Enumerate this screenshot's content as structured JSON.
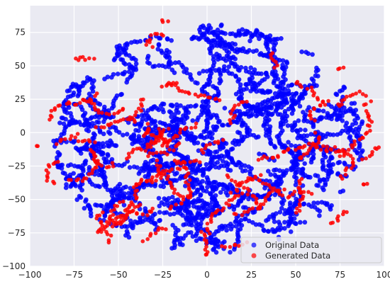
{
  "chart_data": {
    "type": "scatter",
    "xlim": [
      -100,
      100
    ],
    "ylim": [
      -100,
      95
    ],
    "x_ticks": [
      "−100",
      "−75",
      "−50",
      "−25",
      "0",
      "25",
      "50",
      "75",
      "100"
    ],
    "x_tick_values": [
      -100,
      -75,
      -50,
      -25,
      0,
      25,
      50,
      75,
      100
    ],
    "y_ticks": [
      "−100",
      "−75",
      "−50",
      "−25",
      "0",
      "25",
      "50",
      "75"
    ],
    "y_tick_values": [
      -100,
      -75,
      -50,
      -25,
      0,
      25,
      50,
      75
    ],
    "grid": true,
    "legend_position": "bottom-right",
    "colors": {
      "plot_background": "#eaeaf2",
      "grid": "#ffffff",
      "original": "#0000ff",
      "generated": "#ff0000"
    },
    "series": [
      {
        "name": "Original Data",
        "color": "#0000ff",
        "region": {
          "type": "blob",
          "center": [
            0,
            -5
          ],
          "rx": 88,
          "ry": 86,
          "points_approx": 2500
        }
      },
      {
        "name": "Generated Data",
        "color": "#ff0000",
        "region": {
          "type": "blob",
          "center": [
            0,
            -5
          ],
          "rx": 97,
          "ry": 94,
          "points_approx": 700
        }
      }
    ],
    "legend": [
      "Original Data",
      "Generated Data"
    ]
  }
}
